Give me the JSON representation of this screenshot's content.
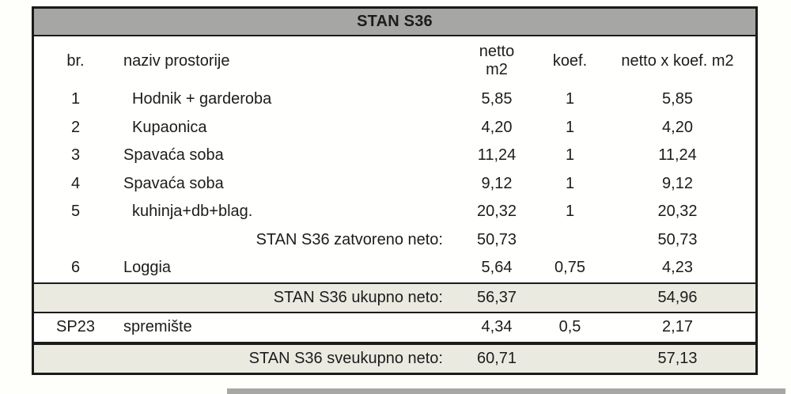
{
  "table": {
    "title": "STAN S36",
    "columns": {
      "br": "br.",
      "naziv": "naziv prostorije",
      "netto_line1": "netto",
      "netto_line2": "m2",
      "koef": "koef.",
      "result": "netto x koef. m2"
    },
    "rows": [
      {
        "type": "data",
        "indent": true,
        "br": "1",
        "naziv": "Hodnik + garderoba",
        "netto": "5,85",
        "koef": "1",
        "result": "5,85"
      },
      {
        "type": "data",
        "indent": true,
        "br": "2",
        "naziv": "Kupaonica",
        "netto": "4,20",
        "koef": "1",
        "result": "4,20"
      },
      {
        "type": "data",
        "indent": false,
        "br": "3",
        "naziv": "Spavaća soba",
        "netto": "11,24",
        "koef": "1",
        "result": "11,24"
      },
      {
        "type": "data",
        "indent": false,
        "br": "4",
        "naziv": "Spavaća soba",
        "netto": "9,12",
        "koef": "1",
        "result": "9,12"
      },
      {
        "type": "data",
        "indent": true,
        "br": "5",
        "naziv": "kuhinja+db+blag.",
        "netto": "20,32",
        "koef": "1",
        "result": "20,32"
      },
      {
        "type": "subtotal",
        "variant": "plain",
        "label": "STAN S36 zatvoreno neto:",
        "netto": "50,73",
        "koef": "",
        "result": "50,73"
      },
      {
        "type": "data",
        "indent": false,
        "br": "6",
        "naziv": "Loggia",
        "netto": "5,64",
        "koef": "0,75",
        "result": "4,23"
      },
      {
        "type": "subtotal",
        "variant": "highlight",
        "label": "STAN S36 ukupno neto:",
        "netto": "56,37",
        "koef": "",
        "result": "54,96"
      },
      {
        "type": "data",
        "indent": false,
        "br": "SP23",
        "naziv": "spremište",
        "netto": "4,34",
        "koef": "0,5",
        "result": "2,17"
      },
      {
        "type": "subtotal",
        "variant": "final",
        "label": "STAN S36 sveukupno neto:",
        "netto": "60,71",
        "koef": "",
        "result": "57,13"
      }
    ]
  },
  "colors": {
    "title_bg": "#a6a6a4",
    "subtotal_bg": "#ebeae1",
    "border": "#1b1b1b",
    "text": "#1c1c1c"
  }
}
